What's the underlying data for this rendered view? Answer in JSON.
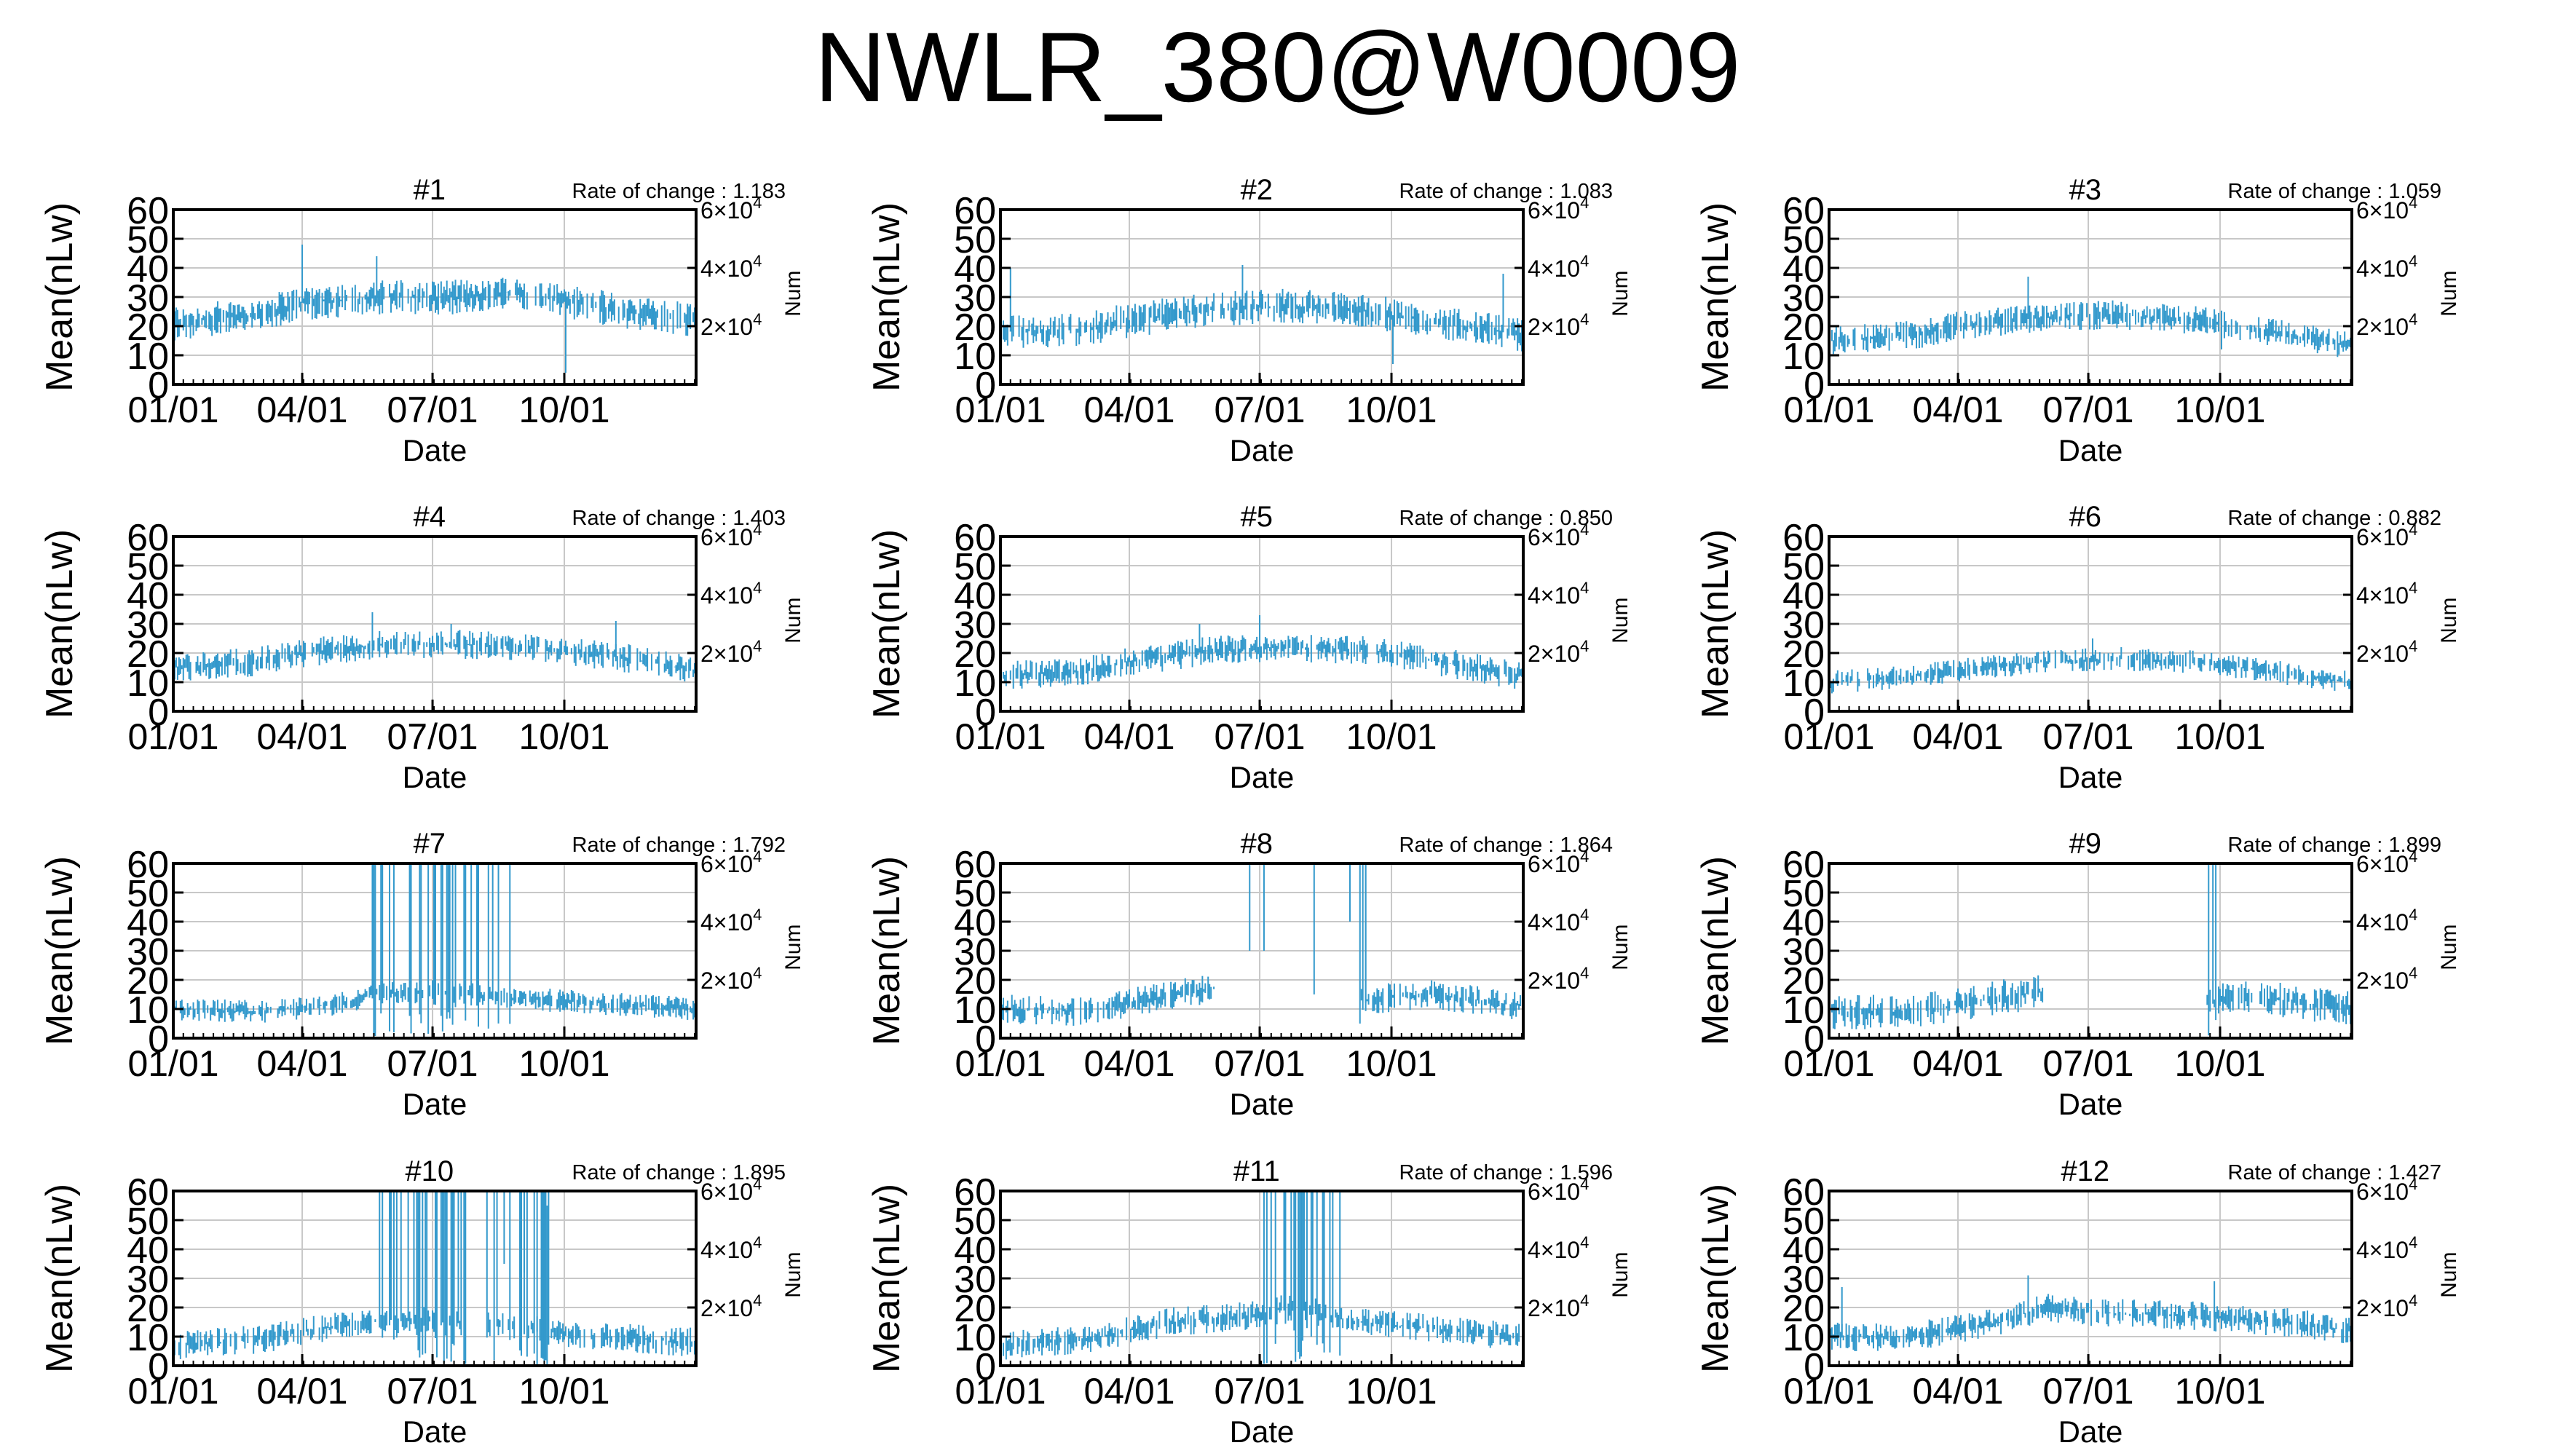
{
  "title": "NWLR_380@W0009",
  "chart_data": {
    "type": "line",
    "ylabel": "Mean(nLw)",
    "xlabel": "Date",
    "y2label": "Num",
    "ylim": [
      0,
      60
    ],
    "yticks": [
      0,
      10,
      20,
      30,
      40,
      50,
      60
    ],
    "y2ticks": [
      {
        "value": 20000,
        "mant": "2×10",
        "exp": "4"
      },
      {
        "value": 40000,
        "mant": "4×10",
        "exp": "4"
      },
      {
        "value": 60000,
        "mant": "6×10",
        "exp": "4"
      }
    ],
    "x_range_days": [
      1,
      366
    ],
    "xticks": [
      {
        "label": "01/01",
        "day": 1
      },
      {
        "label": "04/01",
        "day": 91
      },
      {
        "label": "07/01",
        "day": 182
      },
      {
        "label": "10/01",
        "day": 274
      }
    ],
    "grid": true,
    "series_color": "#3399cc",
    "rate_prefix": "Rate of change : ",
    "panels": [
      {
        "name": "#1",
        "rate": "1.183",
        "base": [
          [
            1,
            21
          ],
          [
            60,
            24
          ],
          [
            90,
            28
          ],
          [
            150,
            30
          ],
          [
            200,
            30
          ],
          [
            240,
            32
          ],
          [
            280,
            28
          ],
          [
            330,
            24
          ],
          [
            366,
            22
          ]
        ],
        "spread": 6,
        "gaps": [],
        "spikes": [
          [
            91,
            48
          ],
          [
            143,
            44
          ],
          [
            275,
            4
          ]
        ]
      },
      {
        "name": "#2",
        "rate": "1.083",
        "base": [
          [
            1,
            18
          ],
          [
            60,
            19
          ],
          [
            90,
            22
          ],
          [
            150,
            26
          ],
          [
            200,
            27
          ],
          [
            260,
            25
          ],
          [
            320,
            20
          ],
          [
            366,
            17
          ]
        ],
        "spread": 6,
        "gaps": [],
        "spikes": [
          [
            8,
            40
          ],
          [
            170,
            41
          ],
          [
            275,
            7
          ],
          [
            352,
            38
          ]
        ]
      },
      {
        "name": "#3",
        "rate": "1.059",
        "base": [
          [
            1,
            15
          ],
          [
            60,
            17
          ],
          [
            90,
            20
          ],
          [
            150,
            23
          ],
          [
            200,
            24
          ],
          [
            260,
            22
          ],
          [
            320,
            17
          ],
          [
            366,
            13
          ]
        ],
        "spread": 5,
        "gaps": [],
        "spikes": [
          [
            140,
            37
          ],
          [
            275,
            12
          ]
        ]
      },
      {
        "name": "#4",
        "rate": "1.403",
        "base": [
          [
            1,
            15
          ],
          [
            60,
            17
          ],
          [
            90,
            20
          ],
          [
            150,
            23
          ],
          [
            200,
            23
          ],
          [
            260,
            22
          ],
          [
            320,
            18
          ],
          [
            366,
            14
          ]
        ],
        "spread": 5,
        "gaps": [],
        "spikes": [
          [
            140,
            34
          ],
          [
            195,
            30
          ],
          [
            310,
            31
          ]
        ]
      },
      {
        "name": "#5",
        "rate": "0.850",
        "base": [
          [
            1,
            12
          ],
          [
            60,
            14
          ],
          [
            90,
            17
          ],
          [
            150,
            21
          ],
          [
            200,
            22
          ],
          [
            260,
            21
          ],
          [
            320,
            16
          ],
          [
            366,
            12
          ]
        ],
        "spread": 5,
        "gaps": [],
        "spikes": [
          [
            140,
            30
          ],
          [
            182,
            33
          ]
        ]
      },
      {
        "name": "#6",
        "rate": "0.882",
        "base": [
          [
            1,
            10
          ],
          [
            60,
            12
          ],
          [
            90,
            14
          ],
          [
            150,
            17
          ],
          [
            200,
            18
          ],
          [
            260,
            17
          ],
          [
            320,
            13
          ],
          [
            366,
            10
          ]
        ],
        "spread": 4,
        "gaps": [],
        "spikes": [
          [
            185,
            25
          ],
          [
            205,
            22
          ]
        ]
      },
      {
        "name": "#7",
        "rate": "1.792",
        "base": [
          [
            1,
            10
          ],
          [
            60,
            9
          ],
          [
            120,
            12
          ],
          [
            140,
            15
          ],
          [
            182,
            16
          ],
          [
            230,
            14
          ],
          [
            300,
            12
          ],
          [
            366,
            10
          ]
        ],
        "spread": 4,
        "gaps": [],
        "spikes": [],
        "burst": [
          140,
          245
        ]
      },
      {
        "name": "#8",
        "rate": "1.864",
        "base": [
          [
            1,
            10
          ],
          [
            60,
            9
          ],
          [
            120,
            15
          ],
          [
            150,
            17
          ],
          [
            252,
            13
          ],
          [
            300,
            15
          ],
          [
            366,
            11
          ]
        ],
        "spread": 5,
        "gaps": [
          [
            150,
            252
          ]
        ],
        "spikes": [],
        "burst": [
          243,
          258
        ],
        "segs": [
          [
            175,
            30,
            60
          ],
          [
            185,
            30,
            60
          ],
          [
            220,
            15,
            60
          ],
          [
            245,
            40,
            60
          ],
          [
            252,
            5,
            60
          ],
          [
            256,
            12,
            60
          ]
        ]
      },
      {
        "name": "#9",
        "rate": "1.899",
        "base": [
          [
            1,
            9
          ],
          [
            60,
            9
          ],
          [
            120,
            14
          ],
          [
            150,
            16
          ],
          [
            265,
            13
          ],
          [
            300,
            14
          ],
          [
            366,
            10
          ]
        ],
        "spread": 6,
        "gaps": [
          [
            150,
            265
          ]
        ],
        "spikes": [],
        "burst": [
          264,
          271
        ]
      },
      {
        "name": "#10",
        "rate": "1.895",
        "base": [
          [
            1,
            7
          ],
          [
            60,
            9
          ],
          [
            120,
            14
          ],
          [
            150,
            16
          ],
          [
            200,
            15
          ],
          [
            265,
            12
          ],
          [
            300,
            10
          ],
          [
            366,
            8
          ]
        ],
        "spread": 5,
        "gaps": [
          [
            205,
            220
          ]
        ],
        "spikes": [],
        "burst": [
          145,
          268
        ],
        "segs": [
          [
            232,
            35,
            60
          ],
          [
            246,
            32,
            60
          ],
          [
            255,
            0,
            60
          ],
          [
            262,
            0,
            55
          ]
        ]
      },
      {
        "name": "#11",
        "rate": "1.596",
        "base": [
          [
            1,
            7
          ],
          [
            60,
            9
          ],
          [
            120,
            15
          ],
          [
            170,
            17
          ],
          [
            205,
            20
          ],
          [
            250,
            15
          ],
          [
            320,
            12
          ],
          [
            366,
            10
          ]
        ],
        "spread": 5,
        "gaps": [],
        "spikes": [],
        "burst": [
          185,
          245
        ]
      },
      {
        "name": "#12",
        "rate": "1.427",
        "base": [
          [
            1,
            10
          ],
          [
            60,
            10
          ],
          [
            120,
            15
          ],
          [
            150,
            20
          ],
          [
            200,
            18
          ],
          [
            260,
            17
          ],
          [
            320,
            15
          ],
          [
            366,
            12
          ]
        ],
        "spread": 5,
        "gaps": [],
        "spikes": [
          [
            10,
            27
          ],
          [
            140,
            31
          ],
          [
            270,
            29
          ]
        ]
      }
    ]
  }
}
